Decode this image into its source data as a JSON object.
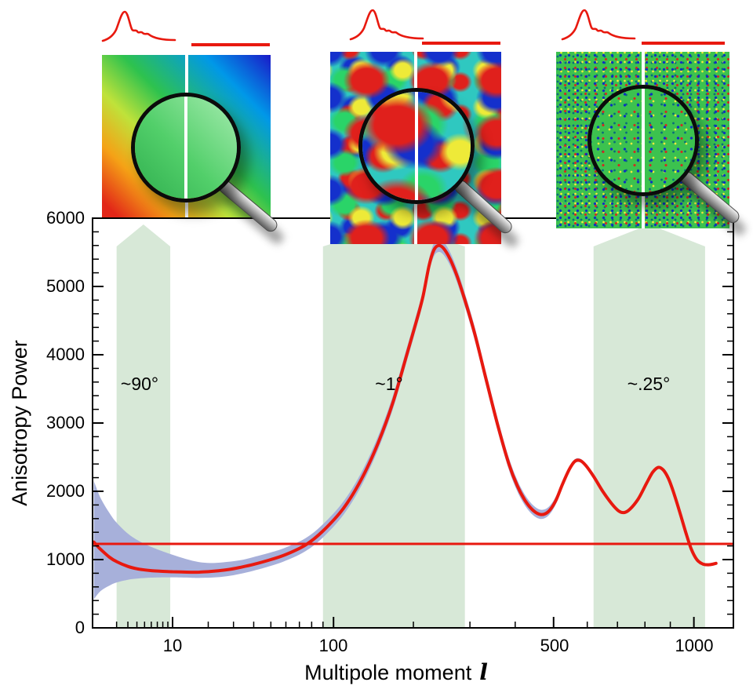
{
  "axes": {
    "ylabel": "Anisotropy Power",
    "xlabel_prefix": "Multipole moment",
    "xlabel_symbol": "l",
    "x_scale": "log-like",
    "y_range": [
      0,
      6000
    ],
    "y_ticks": [
      0,
      1000,
      2000,
      3000,
      4000,
      5000,
      6000
    ],
    "y_tick_labels": [
      "0",
      "1000",
      "2000",
      "3000",
      "4000",
      "5000",
      "6000"
    ],
    "y_minor_step": 200,
    "x_ticks": [
      10,
      100,
      500,
      1000
    ],
    "x_tick_labels": [
      "10",
      "100",
      "500",
      "1000"
    ],
    "x_minor_ticks": [
      2,
      3,
      4,
      5,
      6,
      7,
      8,
      9,
      20,
      30,
      40,
      50,
      60,
      70,
      80,
      90,
      200,
      300,
      400,
      600,
      700,
      800,
      900
    ]
  },
  "chart_data": {
    "type": "line",
    "xlabel": "Multipole moment l",
    "ylabel": "Anisotropy Power",
    "x_range": [
      2,
      1100
    ],
    "y_range": [
      0,
      6000
    ],
    "band_color": "#d7e8d7",
    "series": [
      {
        "name": "anisotropy-power-spectrum",
        "color": "#e8190f",
        "points": [
          [
            0.7,
            1255
          ],
          [
            1,
            1150
          ],
          [
            1.5,
            1035
          ],
          [
            2,
            970
          ],
          [
            3,
            900
          ],
          [
            4,
            865
          ],
          [
            5,
            848
          ],
          [
            6,
            838
          ],
          [
            8,
            828
          ],
          [
            10,
            822
          ],
          [
            12,
            818
          ],
          [
            15,
            815
          ],
          [
            18,
            818
          ],
          [
            22,
            830
          ],
          [
            27,
            850
          ],
          [
            33,
            885
          ],
          [
            40,
            930
          ],
          [
            50,
            1000
          ],
          [
            60,
            1075
          ],
          [
            75,
            1215
          ],
          [
            90,
            1420
          ],
          [
            110,
            1750
          ],
          [
            130,
            2180
          ],
          [
            150,
            2700
          ],
          [
            170,
            3300
          ],
          [
            190,
            4000
          ],
          [
            205,
            4500
          ],
          [
            215,
            4850
          ],
          [
            225,
            5300
          ],
          [
            233,
            5530
          ],
          [
            241,
            5600
          ],
          [
            250,
            5560
          ],
          [
            262,
            5400
          ],
          [
            275,
            5150
          ],
          [
            290,
            4800
          ],
          [
            310,
            4300
          ],
          [
            335,
            3600
          ],
          [
            360,
            2950
          ],
          [
            385,
            2400
          ],
          [
            405,
            2080
          ],
          [
            425,
            1860
          ],
          [
            445,
            1720
          ],
          [
            465,
            1660
          ],
          [
            485,
            1700
          ],
          [
            505,
            1850
          ],
          [
            525,
            2100
          ],
          [
            545,
            2320
          ],
          [
            562,
            2440
          ],
          [
            578,
            2450
          ],
          [
            595,
            2380
          ],
          [
            620,
            2220
          ],
          [
            650,
            2000
          ],
          [
            680,
            1820
          ],
          [
            705,
            1710
          ],
          [
            725,
            1690
          ],
          [
            745,
            1740
          ],
          [
            775,
            1890
          ],
          [
            805,
            2110
          ],
          [
            830,
            2280
          ],
          [
            852,
            2350
          ],
          [
            872,
            2310
          ],
          [
            892,
            2190
          ],
          [
            912,
            2000
          ],
          [
            938,
            1710
          ],
          [
            963,
            1420
          ],
          [
            988,
            1160
          ],
          [
            1013,
            1000
          ],
          [
            1040,
            935
          ],
          [
            1070,
            925
          ],
          [
            1100,
            945
          ]
        ]
      }
    ],
    "reference_line": {
      "value": 1230,
      "color": "#e8190f"
    },
    "uncertainty_band": {
      "color": "#a7b0da",
      "points": [
        [
          0.7,
          420,
          2150
        ],
        [
          1,
          540,
          1900
        ],
        [
          1.5,
          620,
          1680
        ],
        [
          2,
          665,
          1540
        ],
        [
          3,
          705,
          1380
        ],
        [
          4,
          722,
          1290
        ],
        [
          5,
          730,
          1230
        ],
        [
          6,
          736,
          1185
        ],
        [
          8,
          740,
          1120
        ],
        [
          10,
          740,
          1070
        ],
        [
          12,
          738,
          1030
        ],
        [
          15,
          733,
          983
        ],
        [
          18,
          732,
          958
        ],
        [
          22,
          738,
          950
        ],
        [
          27,
          755,
          965
        ],
        [
          33,
          790,
          990
        ],
        [
          40,
          838,
          1038
        ],
        [
          50,
          908,
          1105
        ],
        [
          60,
          985,
          1178
        ],
        [
          75,
          1125,
          1315
        ],
        [
          90,
          1325,
          1518
        ],
        [
          110,
          1655,
          1850
        ],
        [
          130,
          2085,
          2280
        ],
        [
          150,
          2605,
          2800
        ],
        [
          170,
          3205,
          3400
        ],
        [
          190,
          3905,
          4100
        ],
        [
          205,
          4405,
          4600
        ],
        [
          215,
          4755,
          4950
        ],
        [
          225,
          5205,
          5400
        ],
        [
          233,
          5435,
          5630
        ],
        [
          241,
          5505,
          5700
        ],
        [
          250,
          5465,
          5660
        ],
        [
          262,
          5305,
          5500
        ],
        [
          275,
          5055,
          5250
        ],
        [
          290,
          4705,
          4900
        ],
        [
          310,
          4205,
          4400
        ],
        [
          335,
          3505,
          3700
        ],
        [
          360,
          2860,
          3045
        ],
        [
          385,
          2315,
          2490
        ],
        [
          405,
          2000,
          2165
        ],
        [
          425,
          1785,
          1940
        ],
        [
          445,
          1650,
          1795
        ],
        [
          465,
          1595,
          1730
        ],
        [
          485,
          1640,
          1765
        ],
        [
          505,
          1795,
          1910
        ],
        [
          525,
          2055,
          2150
        ],
        [
          545,
          2285,
          2360
        ],
        [
          562,
          2410,
          2470
        ],
        [
          578,
          2425,
          2478
        ],
        [
          595,
          2355,
          2405
        ],
        [
          620,
          2198,
          2245
        ],
        [
          650,
          1978,
          2022
        ],
        [
          680,
          1798,
          1842
        ],
        [
          705,
          1688,
          1732
        ],
        [
          725,
          1668,
          1712
        ],
        [
          745,
          1718,
          1762
        ],
        [
          775,
          1868,
          1912
        ],
        [
          805,
          2088,
          2132
        ],
        [
          830,
          2258,
          2302
        ],
        [
          852,
          2328,
          2372
        ],
        [
          872,
          2288,
          2332
        ],
        [
          892,
          2168,
          2212
        ],
        [
          912,
          1978,
          2022
        ],
        [
          938,
          1688,
          1732
        ],
        [
          963,
          1398,
          1442
        ],
        [
          988,
          1138,
          1182
        ],
        [
          1013,
          978,
          1022
        ],
        [
          1040,
          913,
          957
        ],
        [
          1070,
          903,
          947
        ],
        [
          1100,
          923,
          967
        ]
      ]
    },
    "angle_bands": [
      {
        "label": "~90°",
        "l_min": 2,
        "l_max": 9.5,
        "label_l": 4.3
      },
      {
        "label": "~1°",
        "l_min": 90,
        "l_max": 290,
        "label_l": 165
      },
      {
        "label": "~.25°",
        "l_min": 620,
        "l_max": 1050,
        "label_l": 815
      }
    ]
  },
  "colors": {
    "curve": "#e8190f",
    "angle_band": "#d7e8d7",
    "uncertainty": "#a7b0da",
    "axis": "#000000"
  },
  "panels": [
    {
      "name": "cmb-map-90deg",
      "texture": "smooth rainbow gradient sky map with magnifier"
    },
    {
      "name": "cmb-map-1deg",
      "texture": "multicolor blob sky map with magnifier"
    },
    {
      "name": "cmb-map-quarter-deg",
      "texture": "fine green speckle sky map with magnifier"
    }
  ]
}
